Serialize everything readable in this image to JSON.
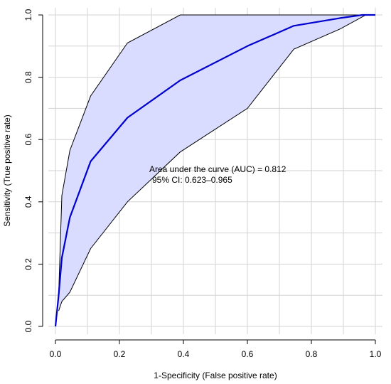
{
  "chart_data": {
    "type": "line",
    "title": "",
    "xlabel": "1-Specificity (False positive rate)",
    "ylabel": "Sensitivity (True positive rate)",
    "xlim": [
      0,
      1
    ],
    "ylim": [
      0,
      1
    ],
    "x_ticks": [
      "0.0",
      "0.2",
      "0.4",
      "0.6",
      "0.8",
      "1.0"
    ],
    "y_ticks": [
      "0.0",
      "0.2",
      "0.4",
      "0.6",
      "0.8",
      "1.0"
    ],
    "grid": true,
    "annotation": {
      "auc_text": "Area under the curve (AUC) = 0.812",
      "ci_text": "95% CI: 0.623–0.965"
    },
    "series": [
      {
        "role": "roc",
        "x": [
          0.0,
          0.01,
          0.02,
          0.045,
          0.11,
          0.225,
          0.39,
          0.6,
          0.745,
          0.89,
          0.96,
          1.0
        ],
        "y": [
          0.0,
          0.1,
          0.22,
          0.35,
          0.53,
          0.67,
          0.79,
          0.9,
          0.965,
          0.99,
          1.0,
          1.0
        ],
        "color": "#0000CD"
      },
      {
        "role": "ci_upper",
        "x": [
          0.01,
          0.02,
          0.045,
          0.11,
          0.225,
          0.39,
          0.6,
          1.0
        ],
        "y": [
          0.1,
          0.42,
          0.565,
          0.74,
          0.91,
          1.0,
          1.0,
          1.0
        ],
        "color": "#000000"
      },
      {
        "role": "ci_lower",
        "x": [
          0.01,
          0.02,
          0.045,
          0.11,
          0.225,
          0.39,
          0.6,
          0.745,
          0.89,
          0.97,
          1.0
        ],
        "y": [
          0.05,
          0.08,
          0.11,
          0.25,
          0.4,
          0.56,
          0.7,
          0.89,
          0.955,
          1.0,
          1.0
        ],
        "color": "#000000"
      }
    ],
    "band_fill": "#D9DBFF"
  }
}
